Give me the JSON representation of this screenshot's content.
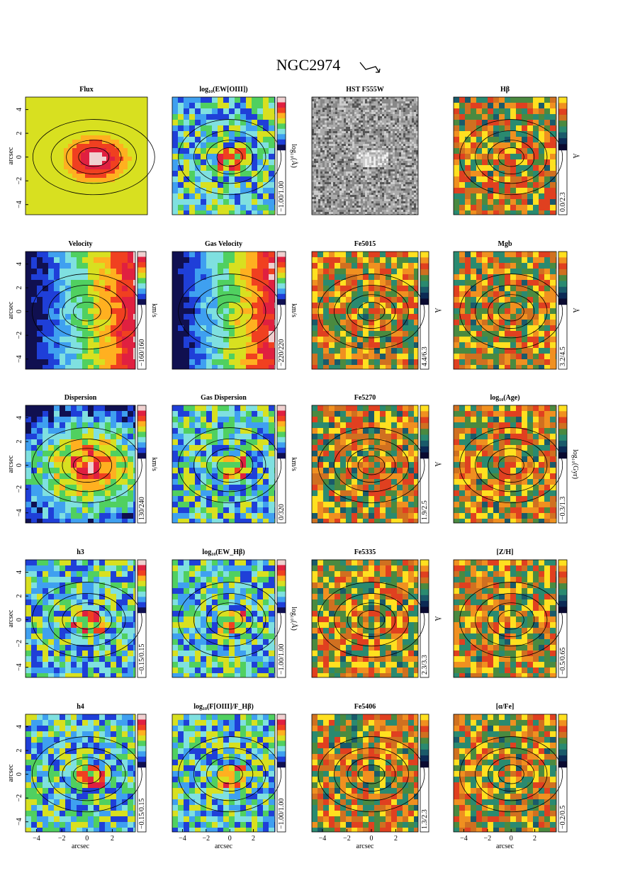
{
  "title": "NGC2974",
  "axis": {
    "label": "arcsec",
    "yticks": [
      "4",
      "2",
      "0",
      "−2",
      "−4"
    ],
    "xticks": [
      "−4",
      "−2",
      "0",
      "2"
    ]
  },
  "panels": [
    {
      "title": "Flux"
    },
    {
      "title": "log₁₀(EW[OIII])",
      "range": "−1.00/1.00",
      "unit": "log₁₀(Å)"
    },
    {
      "title": "HST F555W"
    },
    {
      "title": "Hβ",
      "range": "0.0/2.3",
      "unit": "Å"
    },
    {
      "title": "Velocity",
      "range": "−160/160",
      "unit": "km/s"
    },
    {
      "title": "Gas Velocity",
      "range": "−220/220",
      "unit": "km/s"
    },
    {
      "title": "Fe5015",
      "range": "4.4/6.3",
      "unit": "Å"
    },
    {
      "title": "Mgb",
      "range": "3.2/4.5",
      "unit": "Å"
    },
    {
      "title": "Dispersion",
      "range": "130/240",
      "unit": "km/s"
    },
    {
      "title": "Gas Dispersion",
      "range": "0/320",
      "unit": "km/s"
    },
    {
      "title": "Fe5270",
      "range": "1.9/2.5",
      "unit": "Å"
    },
    {
      "title": "log₁₀(Age)",
      "range": "−0.3/1.3",
      "unit": "log₁₀(Gyr)"
    },
    {
      "title": "h3",
      "range": "−0.15/0.15"
    },
    {
      "title": "log₁₀(EW_Hβ)",
      "range": "−1.00/1.00",
      "unit": "log₁₀(Å)"
    },
    {
      "title": "Fe5335",
      "range": "2.3/3.3",
      "unit": "Å"
    },
    {
      "title": "[Z/H]",
      "range": "−0.5/0.65"
    },
    {
      "title": "h4",
      "range": "−0.15/0.15"
    },
    {
      "title": "log₁₀(F[OIII]/F_Hβ)",
      "range": "−1.00/1.00"
    },
    {
      "title": "Fe5406",
      "range": "1.3/2.3"
    },
    {
      "title": "[α/Fe]",
      "range": "−0.2/0.5"
    }
  ]
}
